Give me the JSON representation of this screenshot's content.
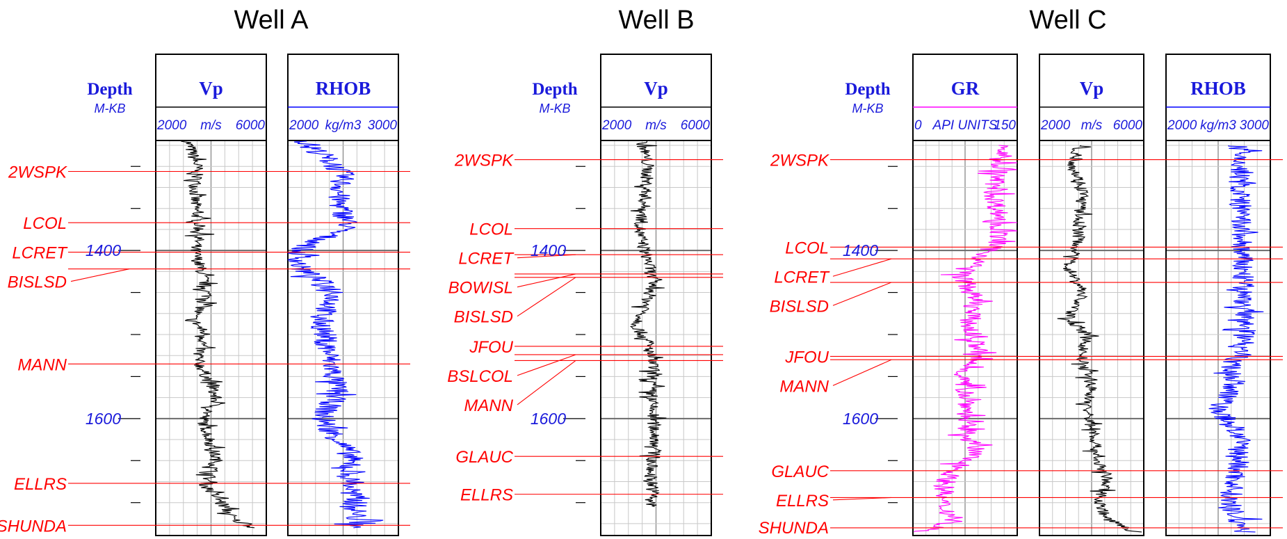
{
  "chart_data": {
    "type": "line",
    "title": "",
    "colors": {
      "depth_text": "#1a1adb",
      "formation_top": "#ff0000",
      "vp_curve": "#000000",
      "rhob_curve": "#0000ff",
      "gr_curve": "#ff00ff",
      "grid": "#c8c8c8"
    },
    "depth_range": [
      1270,
      1735
    ],
    "wells": [
      {
        "name": "Well A",
        "depth_header": "Depth",
        "depth_unit": "M-KB",
        "depth_labels": [
          "1400",
          "1600"
        ],
        "tracks": [
          {
            "name": "Vp",
            "unit": "m/s",
            "min_label": "2000",
            "max_label": "6000",
            "xlim": [
              2000,
              6000
            ],
            "color": "#000000"
          },
          {
            "name": "RHOB",
            "unit": "kg/m3",
            "min_label": "2000",
            "max_label": "3000",
            "xlim": [
              2000,
              3000
            ],
            "color": "#0000ff"
          }
        ],
        "tops": [
          {
            "name": "2WSPK",
            "depth": 1306
          },
          {
            "name": "LCOL",
            "depth": 1367
          },
          {
            "name": "LCRET",
            "depth": 1402
          },
          {
            "name": "BISLSD",
            "depth": 1422
          },
          {
            "name": "MANN",
            "depth": 1535
          },
          {
            "name": "ELLRS",
            "depth": 1677
          },
          {
            "name": "SHUNDA",
            "depth": 1727
          }
        ],
        "curves": {
          "Vp": [
            [
              1270,
              3150
            ],
            [
              1300,
              3500
            ],
            [
              1340,
              3400
            ],
            [
              1380,
              3600
            ],
            [
              1400,
              3400
            ],
            [
              1430,
              3700
            ],
            [
              1460,
              3900
            ],
            [
              1480,
              3300
            ],
            [
              1500,
              3800
            ],
            [
              1530,
              3500
            ],
            [
              1560,
              4000
            ],
            [
              1580,
              4200
            ],
            [
              1600,
              3700
            ],
            [
              1630,
              4000
            ],
            [
              1650,
              4200
            ],
            [
              1680,
              3800
            ],
            [
              1700,
              4400
            ],
            [
              1720,
              4800
            ],
            [
              1730,
              5600
            ]
          ],
          "RHOB": [
            [
              1270,
              2150
            ],
            [
              1290,
              2350
            ],
            [
              1310,
              2500
            ],
            [
              1340,
              2450
            ],
            [
              1370,
              2550
            ],
            [
              1400,
              2100
            ],
            [
              1420,
              2100
            ],
            [
              1450,
              2450
            ],
            [
              1480,
              2300
            ],
            [
              1510,
              2350
            ],
            [
              1540,
              2400
            ],
            [
              1570,
              2450
            ],
            [
              1600,
              2300
            ],
            [
              1640,
              2550
            ],
            [
              1670,
              2550
            ],
            [
              1700,
              2600
            ],
            [
              1730,
              2650
            ]
          ]
        }
      },
      {
        "name": "Well B",
        "depth_header": "Depth",
        "depth_unit": "M-KB",
        "depth_labels": [
          "1400",
          "1600"
        ],
        "tracks": [
          {
            "name": "Vp",
            "unit": "m/s",
            "min_label": "2000",
            "max_label": "6000",
            "xlim": [
              2000,
              6000
            ],
            "color": "#000000"
          }
        ],
        "tops": [
          {
            "name": "2WSPK",
            "depth": 1292
          },
          {
            "name": "LCOL",
            "depth": 1374
          },
          {
            "name": "LCRET",
            "depth": 1405
          },
          {
            "name": "BOWISL",
            "depth": 1428
          },
          {
            "name": "BISLSD",
            "depth": 1432
          },
          {
            "name": "JFOU",
            "depth": 1514
          },
          {
            "name": "BSLCOL",
            "depth": 1524
          },
          {
            "name": "MANN",
            "depth": 1531
          },
          {
            "name": "GLAUC",
            "depth": 1645
          },
          {
            "name": "ELLRS",
            "depth": 1690
          }
        ],
        "curves": {
          "Vp": [
            [
              1270,
              3500
            ],
            [
              1300,
              3700
            ],
            [
              1340,
              3600
            ],
            [
              1380,
              3400
            ],
            [
              1410,
              3700
            ],
            [
              1440,
              3900
            ],
            [
              1470,
              3600
            ],
            [
              1490,
              3300
            ],
            [
              1510,
              3700
            ],
            [
              1540,
              3900
            ],
            [
              1570,
              3800
            ],
            [
              1600,
              3900
            ],
            [
              1630,
              4000
            ],
            [
              1660,
              3800
            ],
            [
              1690,
              3900
            ],
            [
              1705,
              3800
            ]
          ]
        }
      },
      {
        "name": "Well C",
        "depth_header": "Depth",
        "depth_unit": "M-KB",
        "depth_labels": [
          "1400",
          "1600"
        ],
        "tracks": [
          {
            "name": "GR",
            "unit": "API UNITS",
            "min_label": "0",
            "max_label": "150",
            "xlim": [
              0,
              150
            ],
            "color": "#ff00ff"
          },
          {
            "name": "Vp",
            "unit": "m/s",
            "min_label": "2000",
            "max_label": "6000",
            "xlim": [
              2000,
              6000
            ],
            "color": "#000000"
          },
          {
            "name": "RHOB",
            "unit": "kg/m3",
            "min_label": "2000",
            "max_label": "3000",
            "xlim": [
              2000,
              3000
            ],
            "color": "#0000ff"
          }
        ],
        "tops": [
          {
            "name": "2WSPK",
            "depth": 1292
          },
          {
            "name": "LCOL",
            "depth": 1396
          },
          {
            "name": "LCRET",
            "depth": 1410
          },
          {
            "name": "BISLSD",
            "depth": 1438
          },
          {
            "name": "JFOU",
            "depth": 1526
          },
          {
            "name": "MANN",
            "depth": 1530
          },
          {
            "name": "GLAUC",
            "depth": 1662
          },
          {
            "name": "ELLRS",
            "depth": 1694
          },
          {
            "name": "SHUNDA",
            "depth": 1730
          }
        ],
        "curves": {
          "GR": [
            [
              1275,
              130
            ],
            [
              1300,
              125
            ],
            [
              1330,
              115
            ],
            [
              1360,
              125
            ],
            [
              1390,
              122
            ],
            [
              1430,
              70
            ],
            [
              1460,
              90
            ],
            [
              1490,
              80
            ],
            [
              1520,
              95
            ],
            [
              1550,
              70
            ],
            [
              1580,
              80
            ],
            [
              1610,
              75
            ],
            [
              1640,
              90
            ],
            [
              1670,
              50
            ],
            [
              1700,
              40
            ],
            [
              1720,
              60
            ],
            [
              1735,
              15
            ]
          ],
          "Vp": [
            [
              1275,
              3500
            ],
            [
              1300,
              3300
            ],
            [
              1330,
              3700
            ],
            [
              1360,
              3500
            ],
            [
              1390,
              3500
            ],
            [
              1420,
              3100
            ],
            [
              1450,
              3700
            ],
            [
              1480,
              3100
            ],
            [
              1500,
              3800
            ],
            [
              1530,
              3600
            ],
            [
              1560,
              4000
            ],
            [
              1590,
              3800
            ],
            [
              1620,
              4100
            ],
            [
              1650,
              4200
            ],
            [
              1670,
              4600
            ],
            [
              1700,
              4300
            ],
            [
              1720,
              4600
            ],
            [
              1735,
              5700
            ]
          ],
          "RHOB": [
            [
              1275,
              2700
            ],
            [
              1350,
              2710
            ],
            [
              1450,
              2740
            ],
            [
              1520,
              2760
            ],
            [
              1535,
              2620
            ],
            [
              1560,
              2650
            ],
            [
              1590,
              2500
            ],
            [
              1620,
              2700
            ],
            [
              1650,
              2700
            ],
            [
              1680,
              2650
            ],
            [
              1700,
              2600
            ],
            [
              1735,
              2750
            ]
          ]
        }
      }
    ]
  }
}
